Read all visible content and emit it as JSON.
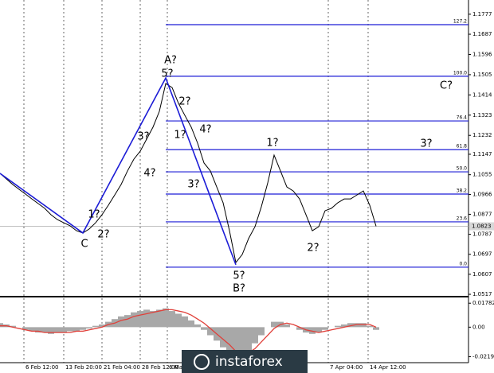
{
  "chart_data": [
    {
      "type": "line",
      "color": "#000000",
      "values": [
        1.1061,
        1.1036,
        1.1011,
        1.0989,
        1.0968,
        1.0946,
        1.0925,
        1.0904,
        1.0875,
        1.0853,
        1.0839,
        1.0825,
        1.0803,
        1.0793,
        1.0811,
        1.0839,
        1.0875,
        1.0918,
        1.0964,
        1.1011,
        1.1072,
        1.1125,
        1.1161,
        1.1215,
        1.1269,
        1.134,
        1.1465,
        1.1447,
        1.1376,
        1.1322,
        1.1269,
        1.1197,
        1.1108,
        1.1072,
        1.1,
        1.0929,
        1.0803,
        1.066,
        1.0696,
        1.0768,
        1.0821,
        1.0911,
        1.1018,
        1.1143,
        1.1072,
        1.1,
        1.0982,
        1.0946,
        1.0875,
        1.0803,
        1.0821,
        1.0893,
        1.0904,
        1.0929,
        1.0946,
        1.0946,
        1.0964,
        1.0982,
        1.0918,
        1.0823
      ],
      "xlim": [
        0,
        73.5
      ],
      "xticks": [
        {
          "value": 3.75,
          "label": "6 Feb 12:00"
        },
        {
          "value": 10,
          "label": "13 Feb 20:00"
        },
        {
          "value": 16,
          "label": "21 Feb 04:00"
        },
        {
          "value": 22,
          "label": "28 Feb 12:00"
        },
        {
          "value": 26.25,
          "label": "6 Mar"
        },
        {
          "value": 51.5,
          "label": "7 Apr 04:00"
        },
        {
          "value": 57.75,
          "label": "14 Apr 12:00"
        }
      ],
      "ylim": [
        1.051,
        1.1841
      ],
      "yticks": [
        1.1777,
        1.1687,
        1.1596,
        1.1505,
        1.1414,
        1.1323,
        1.1232,
        1.1147,
        1.1055,
        1.0966,
        1.0877,
        1.0787,
        1.0697,
        1.0607,
        1.0517
      ],
      "grid": true,
      "last_price": 1.0823,
      "fib_color": "#1c1cd6",
      "fib_levels": [
        {
          "value": 1.173,
          "label": "127.2"
        },
        {
          "value": 1.1498,
          "label": "100.0"
        },
        {
          "value": 1.1297,
          "label": "76.4"
        },
        {
          "value": 1.1168,
          "label": "61.8"
        },
        {
          "value": 1.1068,
          "label": "50.0"
        },
        {
          "value": 1.0968,
          "label": "38.2"
        },
        {
          "value": 1.0843,
          "label": "23.6"
        },
        {
          "value": 1.0639,
          "label": "0.0"
        }
      ],
      "wave_lines": {
        "color": "#1c1cd6",
        "x": [
          0,
          13,
          26,
          37
        ],
        "y": [
          1.1061,
          1.0793,
          1.149,
          1.065
        ]
      },
      "annotations": [
        {
          "text": "A?",
          "color": "#1c1cd6"
        },
        {
          "text": "5?",
          "color": "#1e9a1e"
        },
        {
          "text": "2?",
          "color": "#1e9a1e"
        },
        {
          "text": "1?",
          "color": "#1e9a1e"
        },
        {
          "text": "4?",
          "color": "#1e9a1e"
        },
        {
          "text": "3?",
          "color": "#1e9a1e"
        },
        {
          "text": "4?",
          "color": "#1e9a1e"
        },
        {
          "text": "3?",
          "color": "#1e9a1e"
        },
        {
          "text": "1?",
          "color": "#1e9a1e"
        },
        {
          "text": "2?",
          "color": "#1e9a1e"
        },
        {
          "text": "C",
          "color": "#1c1cd6"
        },
        {
          "text": "5?",
          "color": "#1e9a1e"
        },
        {
          "text": "B?",
          "color": "#1c1cd6"
        },
        {
          "text": "1?",
          "color": "#1e9a1e"
        },
        {
          "text": "2?",
          "color": "#1e9a1e"
        },
        {
          "text": "3?",
          "color": "#1e9a1e"
        },
        {
          "text": "C?",
          "color": "#1c1cd6"
        }
      ]
    },
    {
      "type": "bar",
      "series": [
        {
          "color": "#a8a8a8",
          "values": [
            0.003,
            0.002,
            0.001,
            0,
            -0.002,
            -0.003,
            -0.004,
            -0.004,
            -0.005,
            -0.004,
            -0.004,
            -0.003,
            -0.003,
            -0.002,
            -0.001,
            0.001,
            0.002,
            0.004,
            0.006,
            0.008,
            0.009,
            0.011,
            0.012,
            0.013,
            0.012,
            0.013,
            0.014,
            0.012,
            0.01,
            0.008,
            0.005,
            0.002,
            -0.002,
            -0.006,
            -0.01,
            -0.015,
            -0.02,
            -0.024,
            -0.022,
            -0.018,
            -0.012,
            -0.006,
            0,
            0.004,
            0.004,
            0.002,
            0,
            -0.002,
            -0.004,
            -0.005,
            -0.004,
            -0.002,
            0,
            0.001,
            0.002,
            0.003,
            0.003,
            0.003,
            0.001,
            -0.002
          ]
        },
        {
          "type": "line",
          "color": "#e0403a",
          "values": [
            0.001,
            0.001,
            0,
            -0.001,
            -0.002,
            -0.003,
            -0.003,
            -0.004,
            -0.004,
            -0.004,
            -0.004,
            -0.004,
            -0.003,
            -0.003,
            -0.002,
            -0.001,
            0,
            0.002,
            0.003,
            0.005,
            0.006,
            0.008,
            0.009,
            0.01,
            0.011,
            0.012,
            0.013,
            0.013,
            0.012,
            0.011,
            0.009,
            0.006,
            0.003,
            -0.001,
            -0.005,
            -0.009,
            -0.013,
            -0.018,
            -0.02,
            -0.019,
            -0.016,
            -0.011,
            -0.006,
            -0.001,
            0.002,
            0.003,
            0.002,
            0,
            -0.002,
            -0.003,
            -0.004,
            -0.003,
            -0.002,
            -0.001,
            0,
            0.001,
            0.002,
            0.002,
            0.002,
            0
          ]
        }
      ],
      "ylim": [
        -0.0258,
        0.0215
      ],
      "yticks": [
        0.01782,
        {
          "value": 0,
          "label": "0.00"
        },
        -0.02198
      ]
    }
  ],
  "watermark": "instaforex"
}
